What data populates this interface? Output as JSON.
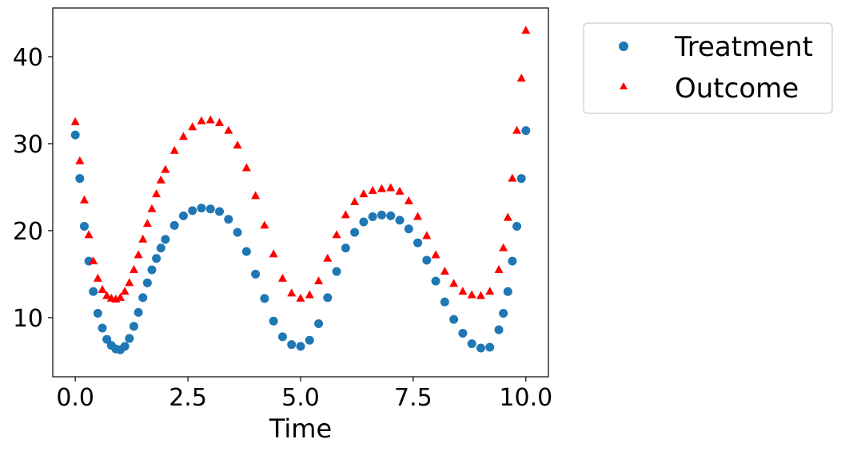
{
  "chart_data": {
    "type": "scatter",
    "xlabel": "Time",
    "ylabel": "",
    "xlim": [
      -0.5,
      10.5
    ],
    "ylim": [
      3.2,
      45.6
    ],
    "xticks": [
      0.0,
      2.5,
      5.0,
      7.5,
      10.0
    ],
    "xtick_labels": [
      "0.0",
      "2.5",
      "5.0",
      "7.5",
      "10.0"
    ],
    "yticks": [
      10,
      20,
      30,
      40
    ],
    "ytick_labels": [
      "10",
      "20",
      "30",
      "40"
    ],
    "grid": false,
    "legend_position": "outside-top-right",
    "series": [
      {
        "name": "Treatment",
        "marker": "circle",
        "color": "#1f77b4",
        "x": [
          0.0,
          0.1,
          0.2,
          0.3,
          0.4,
          0.5,
          0.6,
          0.7,
          0.8,
          0.9,
          1.0,
          1.1,
          1.2,
          1.3,
          1.4,
          1.5,
          1.6,
          1.7,
          1.8,
          1.9,
          2.0,
          2.2,
          2.4,
          2.6,
          2.8,
          3.0,
          3.2,
          3.4,
          3.6,
          3.8,
          4.0,
          4.2,
          4.4,
          4.6,
          4.8,
          5.0,
          5.2,
          5.4,
          5.6,
          5.8,
          6.0,
          6.2,
          6.4,
          6.6,
          6.8,
          7.0,
          7.2,
          7.4,
          7.6,
          7.8,
          8.0,
          8.2,
          8.4,
          8.6,
          8.8,
          9.0,
          9.2,
          9.4,
          9.5,
          9.6,
          9.7,
          9.8,
          9.9,
          10.0
        ],
        "y": [
          31,
          26,
          20.5,
          16.5,
          13,
          10.5,
          8.8,
          7.5,
          6.8,
          6.4,
          6.3,
          6.7,
          7.6,
          9,
          10.6,
          12.3,
          14,
          15.5,
          16.8,
          18,
          19,
          20.6,
          21.7,
          22.3,
          22.6,
          22.5,
          22.2,
          21.3,
          19.8,
          17.6,
          15,
          12.2,
          9.6,
          7.8,
          6.9,
          6.7,
          7.4,
          9.3,
          12.3,
          15.3,
          18,
          19.8,
          21,
          21.6,
          21.8,
          21.7,
          21.2,
          20.2,
          18.6,
          16.6,
          14.2,
          11.8,
          9.8,
          8.2,
          7,
          6.5,
          6.6,
          8.6,
          10.5,
          13,
          16.5,
          20.5,
          26,
          31.5
        ]
      },
      {
        "name": "Outcome",
        "marker": "triangle",
        "color": "#ff0000",
        "x": [
          0.0,
          0.1,
          0.2,
          0.3,
          0.4,
          0.5,
          0.6,
          0.7,
          0.8,
          0.9,
          1.0,
          1.1,
          1.2,
          1.3,
          1.4,
          1.5,
          1.6,
          1.7,
          1.8,
          1.9,
          2.0,
          2.2,
          2.4,
          2.6,
          2.8,
          3.0,
          3.2,
          3.4,
          3.6,
          3.8,
          4.0,
          4.2,
          4.4,
          4.6,
          4.8,
          5.0,
          5.2,
          5.4,
          5.6,
          5.8,
          6.0,
          6.2,
          6.4,
          6.6,
          6.8,
          7.0,
          7.2,
          7.4,
          7.6,
          7.8,
          8.0,
          8.2,
          8.4,
          8.6,
          8.8,
          9.0,
          9.2,
          9.4,
          9.5,
          9.6,
          9.7,
          9.8,
          9.9,
          10.0
        ],
        "y": [
          32.5,
          28,
          23.5,
          19.5,
          16.5,
          14.5,
          13.2,
          12.5,
          12.2,
          12.1,
          12.3,
          13,
          14,
          15.5,
          17.2,
          19,
          20.8,
          22.5,
          24.2,
          25.8,
          27,
          29.2,
          30.8,
          31.9,
          32.6,
          32.7,
          32.4,
          31.5,
          29.8,
          27.2,
          24,
          20.6,
          17.3,
          14.5,
          12.8,
          12.2,
          12.6,
          14.2,
          16.8,
          19.5,
          21.8,
          23.3,
          24.2,
          24.6,
          24.8,
          24.9,
          24.5,
          23.4,
          21.6,
          19.4,
          17.2,
          15.3,
          13.9,
          13,
          12.6,
          12.5,
          13,
          15.5,
          18,
          21.5,
          26,
          31.5,
          37.5,
          43
        ]
      }
    ]
  }
}
